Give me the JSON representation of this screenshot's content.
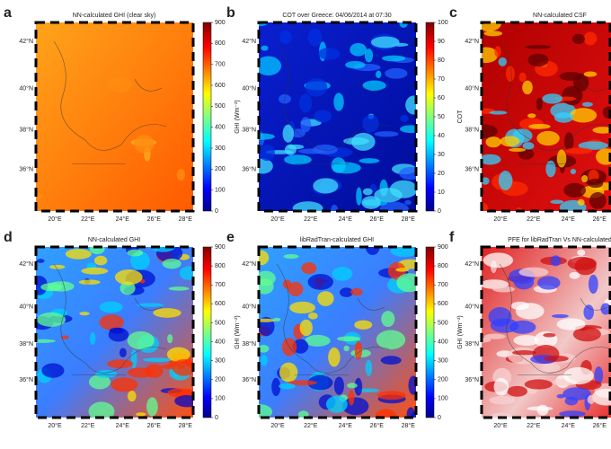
{
  "panels": [
    {
      "letter": "a",
      "title": "NN-calculated GHI (clear sky)",
      "colorbar": {
        "label": "GHI (Wm⁻²)",
        "ticks": [
          "0",
          "100",
          "200",
          "300",
          "400",
          "500",
          "600",
          "700",
          "800",
          "900"
        ]
      }
    },
    {
      "letter": "b",
      "title": "COT over Greece: 04/06/2014 at 07:30",
      "colorbar": {
        "label": "COT",
        "ticks": [
          "0",
          "10",
          "20",
          "30",
          "40",
          "50",
          "60",
          "70",
          "80",
          "90",
          "100"
        ]
      }
    },
    {
      "letter": "c",
      "title": "NN-calculated CSF"
    },
    {
      "letter": "d",
      "title": "NN-calculated GHI",
      "colorbar": {
        "label": "GHI (Wm⁻²)",
        "ticks": [
          "0",
          "100",
          "200",
          "300",
          "400",
          "500",
          "600",
          "700",
          "800",
          "900"
        ]
      }
    },
    {
      "letter": "e",
      "title": "libRadTran-calculated GHI",
      "colorbar": {
        "label": "GHI (Wm⁻²)",
        "ticks": [
          "0",
          "100",
          "200",
          "300",
          "400",
          "500",
          "600",
          "700",
          "800",
          "900"
        ]
      }
    },
    {
      "letter": "f",
      "title": "PFE for libRadTran Vs NN-calculated"
    }
  ],
  "lat_ticks": [
    "36°N",
    "38°N",
    "40°N",
    "42°N"
  ],
  "lon_ticks": [
    "20°E",
    "22°E",
    "24°E",
    "26°E",
    "28°E"
  ]
}
